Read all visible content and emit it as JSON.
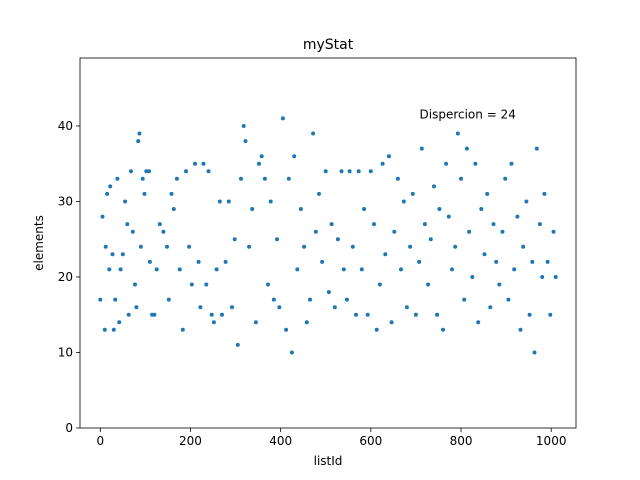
{
  "chart_data": {
    "type": "scatter",
    "title": "myStat",
    "xlabel": "listId",
    "ylabel": "elements",
    "xlim": [
      -45,
      1055
    ],
    "ylim": [
      0,
      49
    ],
    "xticks": [
      0,
      200,
      400,
      600,
      800,
      1000
    ],
    "yticks": [
      0,
      10,
      20,
      30,
      40
    ],
    "grid": false,
    "legend": "none",
    "annotation": {
      "text": "Dispercion = 24",
      "x": 708,
      "y": 41
    },
    "series": [
      {
        "color": "#1f77b4",
        "n_points": 1013,
        "y_range": [
          10,
          41
        ],
        "mean_approx": 24,
        "points_shown": [
          [
            0,
            17
          ],
          [
            5,
            28
          ],
          [
            10,
            13
          ],
          [
            12,
            24
          ],
          [
            15,
            31
          ],
          [
            20,
            21
          ],
          [
            22,
            32
          ],
          [
            27,
            23
          ],
          [
            30,
            13
          ],
          [
            33,
            17
          ],
          [
            38,
            33
          ],
          [
            42,
            14
          ],
          [
            45,
            21
          ],
          [
            50,
            23
          ],
          [
            55,
            30
          ],
          [
            60,
            27
          ],
          [
            63,
            15
          ],
          [
            68,
            34
          ],
          [
            72,
            26
          ],
          [
            77,
            19
          ],
          [
            80,
            16
          ],
          [
            84,
            38
          ],
          [
            87,
            39
          ],
          [
            90,
            24
          ],
          [
            94,
            33
          ],
          [
            98,
            31
          ],
          [
            102,
            34
          ],
          [
            108,
            34
          ],
          [
            110,
            22
          ],
          [
            115,
            15
          ],
          [
            120,
            15
          ],
          [
            125,
            21
          ],
          [
            132,
            27
          ],
          [
            140,
            26
          ],
          [
            148,
            24
          ],
          [
            152,
            17
          ],
          [
            158,
            31
          ],
          [
            163,
            29
          ],
          [
            170,
            33
          ],
          [
            176,
            21
          ],
          [
            183,
            13
          ],
          [
            190,
            34
          ],
          [
            197,
            24
          ],
          [
            203,
            19
          ],
          [
            210,
            35
          ],
          [
            218,
            22
          ],
          [
            222,
            16
          ],
          [
            229,
            35
          ],
          [
            235,
            19
          ],
          [
            240,
            34
          ],
          [
            247,
            15
          ],
          [
            252,
            14
          ],
          [
            258,
            21
          ],
          [
            265,
            30
          ],
          [
            270,
            15
          ],
          [
            278,
            22
          ],
          [
            285,
            30
          ],
          [
            292,
            16
          ],
          [
            298,
            25
          ],
          [
            305,
            11
          ],
          [
            312,
            33
          ],
          [
            318,
            40
          ],
          [
            322,
            38
          ],
          [
            330,
            24
          ],
          [
            337,
            29
          ],
          [
            345,
            14
          ],
          [
            352,
            35
          ],
          [
            358,
            36
          ],
          [
            365,
            33
          ],
          [
            372,
            19
          ],
          [
            378,
            30
          ],
          [
            385,
            17
          ],
          [
            392,
            25
          ],
          [
            397,
            16
          ],
          [
            405,
            41
          ],
          [
            412,
            13
          ],
          [
            418,
            33
          ],
          [
            425,
            10
          ],
          [
            430,
            36
          ],
          [
            437,
            21
          ],
          [
            445,
            29
          ],
          [
            452,
            24
          ],
          [
            458,
            14
          ],
          [
            465,
            17
          ],
          [
            472,
            39
          ],
          [
            478,
            26
          ],
          [
            485,
            31
          ],
          [
            492,
            22
          ],
          [
            500,
            34
          ],
          [
            507,
            18
          ],
          [
            513,
            27
          ],
          [
            520,
            16
          ],
          [
            527,
            25
          ],
          [
            535,
            34
          ],
          [
            540,
            21
          ],
          [
            547,
            17
          ],
          [
            553,
            34
          ],
          [
            560,
            24
          ],
          [
            567,
            15
          ],
          [
            573,
            34
          ],
          [
            580,
            21
          ],
          [
            585,
            29
          ],
          [
            593,
            15
          ],
          [
            600,
            34
          ],
          [
            607,
            27
          ],
          [
            613,
            13
          ],
          [
            620,
            19
          ],
          [
            626,
            35
          ],
          [
            632,
            23
          ],
          [
            640,
            36
          ],
          [
            646,
            14
          ],
          [
            652,
            26
          ],
          [
            660,
            33
          ],
          [
            667,
            21
          ],
          [
            673,
            30
          ],
          [
            680,
            16
          ],
          [
            687,
            24
          ],
          [
            693,
            31
          ],
          [
            700,
            15
          ],
          [
            707,
            22
          ],
          [
            713,
            37
          ],
          [
            720,
            27
          ],
          [
            727,
            19
          ],
          [
            733,
            25
          ],
          [
            740,
            32
          ],
          [
            747,
            15
          ],
          [
            752,
            29
          ],
          [
            760,
            13
          ],
          [
            767,
            35
          ],
          [
            773,
            28
          ],
          [
            780,
            21
          ],
          [
            787,
            24
          ],
          [
            793,
            39
          ],
          [
            800,
            33
          ],
          [
            807,
            17
          ],
          [
            813,
            37
          ],
          [
            818,
            26
          ],
          [
            825,
            20
          ],
          [
            832,
            35
          ],
          [
            838,
            14
          ],
          [
            845,
            29
          ],
          [
            852,
            23
          ],
          [
            858,
            31
          ],
          [
            865,
            16
          ],
          [
            872,
            27
          ],
          [
            878,
            22
          ],
          [
            885,
            19
          ],
          [
            892,
            26
          ],
          [
            898,
            33
          ],
          [
            905,
            17
          ],
          [
            912,
            35
          ],
          [
            918,
            21
          ],
          [
            925,
            28
          ],
          [
            932,
            13
          ],
          [
            938,
            24
          ],
          [
            945,
            30
          ],
          [
            952,
            15
          ],
          [
            958,
            22
          ],
          [
            963,
            10
          ],
          [
            968,
            37
          ],
          [
            975,
            27
          ],
          [
            980,
            20
          ],
          [
            985,
            31
          ],
          [
            992,
            22
          ],
          [
            998,
            15
          ],
          [
            1005,
            26
          ],
          [
            1010,
            20
          ]
        ]
      }
    ]
  }
}
